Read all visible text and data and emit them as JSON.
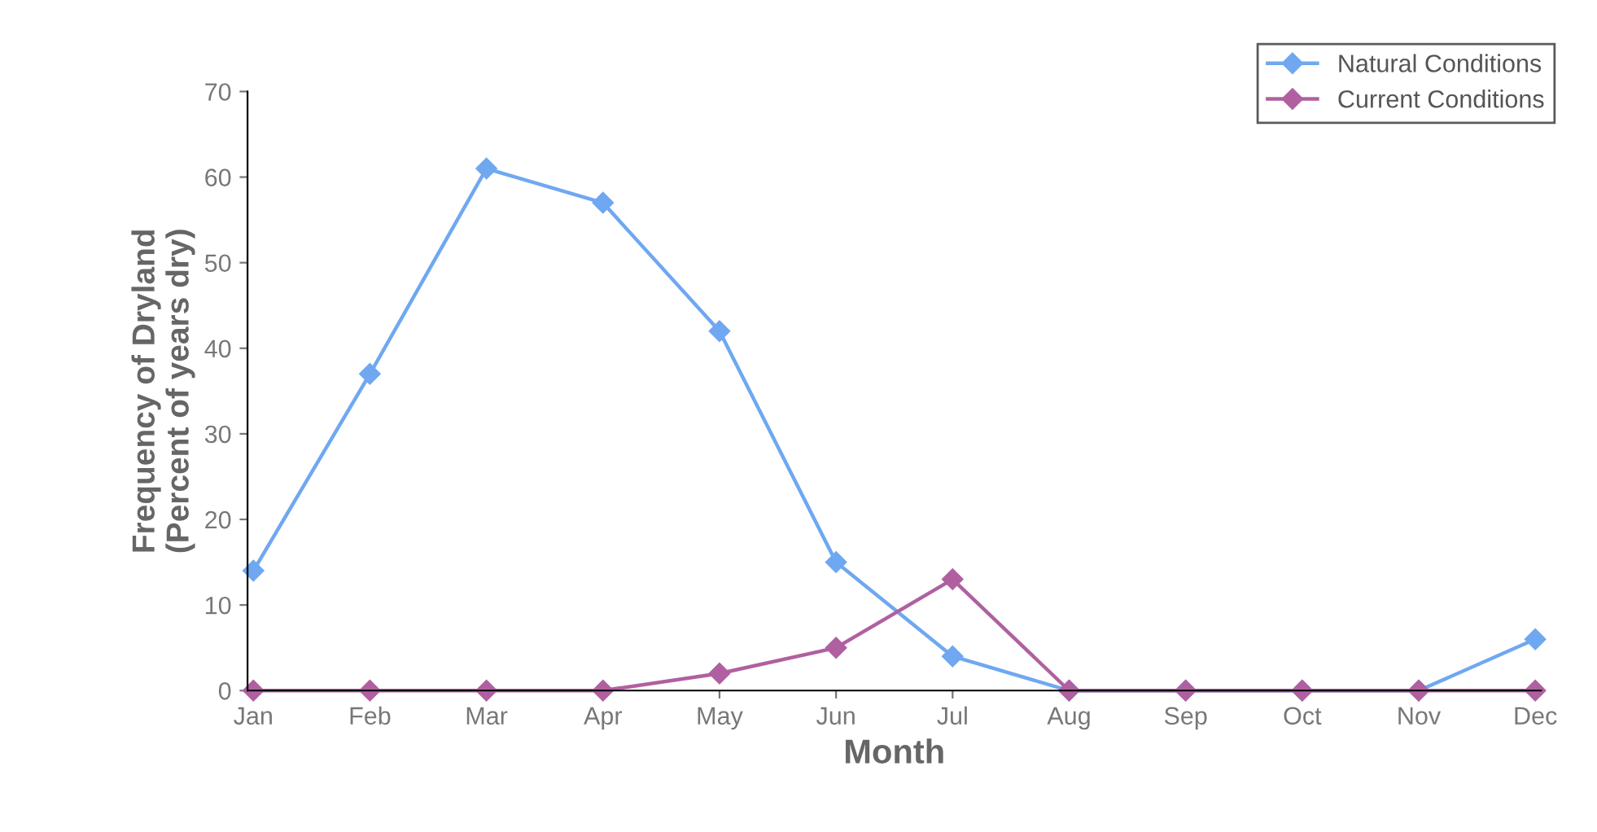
{
  "chart_data": {
    "type": "line",
    "xlabel": "Month",
    "ylabel": "Frequency of Dryland\n(Percent of years dry)",
    "categories": [
      "Jan",
      "Feb",
      "Mar",
      "Apr",
      "May",
      "Jun",
      "Jul",
      "Aug",
      "Sep",
      "Oct",
      "Nov",
      "Dec"
    ],
    "series": [
      {
        "name": "Natural Conditions",
        "color": "#6fa8f0",
        "values": [
          14,
          37,
          61,
          57,
          42,
          15,
          4,
          0,
          0,
          0,
          0,
          6
        ]
      },
      {
        "name": "Current Conditions",
        "color": "#b060a0",
        "values": [
          0,
          0,
          0,
          0,
          2,
          5,
          13,
          0,
          0,
          0,
          0,
          0
        ]
      }
    ],
    "ylim": [
      0,
      70
    ],
    "yticks": [
      0,
      10,
      20,
      30,
      40,
      50,
      60,
      70
    ],
    "grid": false,
    "legend": "top right",
    "marker": "diamond",
    "line_style": "solid"
  }
}
